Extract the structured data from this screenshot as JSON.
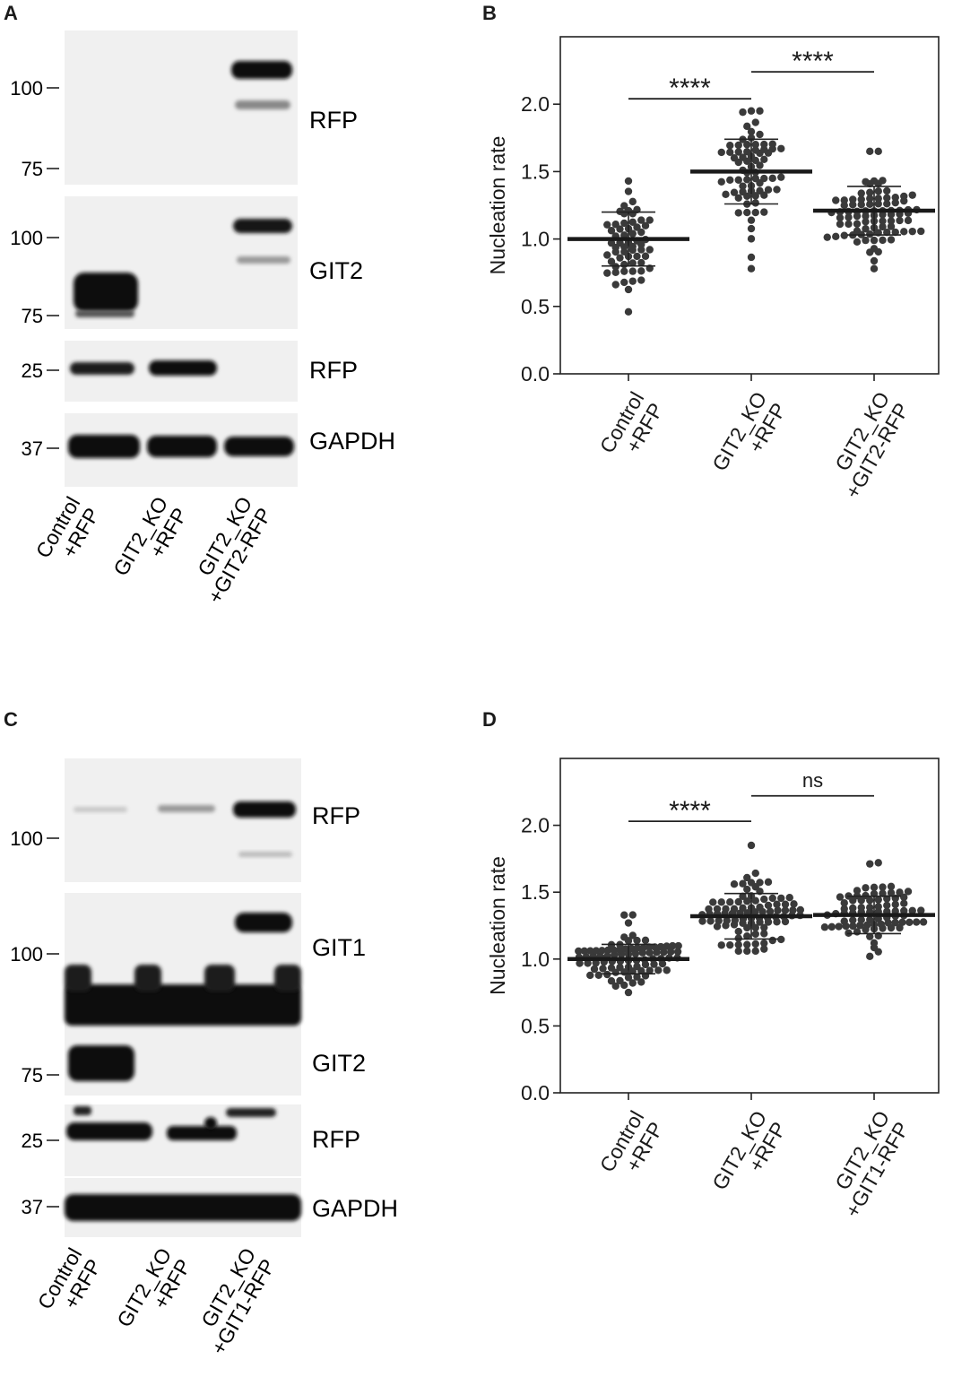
{
  "panels": {
    "A": {
      "letter": "A",
      "blots": [
        {
          "label": "RFP",
          "markers": [
            "100",
            "75"
          ]
        },
        {
          "label": "GIT2",
          "markers": [
            "100",
            "75"
          ]
        },
        {
          "label": "RFP",
          "markers": [
            "25"
          ]
        },
        {
          "label": "GAPDH",
          "markers": [
            "37"
          ]
        }
      ],
      "lanes": [
        {
          "line1": "Control",
          "line2": "+RFP"
        },
        {
          "line1": "GIT2_KO",
          "line2": "+RFP"
        },
        {
          "line1": "GIT2_KO",
          "line2": "+GIT2-RFP"
        }
      ]
    },
    "B": {
      "letter": "B"
    },
    "C": {
      "letter": "C",
      "blots": [
        {
          "label": "RFP",
          "markers": [
            "100"
          ]
        },
        {
          "label": "GIT1",
          "markers": [
            "100"
          ]
        },
        {
          "label": "GIT2",
          "markers": [
            "75"
          ]
        },
        {
          "label": "RFP",
          "markers": [
            "25"
          ]
        },
        {
          "label": "GAPDH",
          "markers": [
            "37"
          ]
        }
      ],
      "lanes": [
        {
          "line1": "Control",
          "line2": "+RFP"
        },
        {
          "line1": "GIT2_KO",
          "line2": "+RFP"
        },
        {
          "line1": "GIT2_KO",
          "line2": "+GIT1-RFP"
        }
      ]
    },
    "D": {
      "letter": "D"
    }
  },
  "chart_data": [
    {
      "panel": "B",
      "type": "scatter",
      "title": "",
      "xlabel": "",
      "ylabel": "Nucleation rate",
      "ylim": [
        0,
        2.5
      ],
      "yticks": [
        "0.0",
        "0.5",
        "1.0",
        "1.5",
        "2.0"
      ],
      "grid": false,
      "categories": [
        {
          "line1": "Control",
          "line2": "+RFP"
        },
        {
          "line1": "GIT2_KO",
          "line2": "+RFP"
        },
        {
          "line1": "GIT2_KO",
          "line2": "+GIT2-RFP"
        }
      ],
      "groups": [
        {
          "mean": 1.0,
          "sd": 0.2,
          "n": 60,
          "min": 0.46,
          "max": 1.43
        },
        {
          "mean": 1.5,
          "sd": 0.24,
          "n": 70,
          "min": 0.78,
          "max": 1.95
        },
        {
          "mean": 1.21,
          "sd": 0.18,
          "n": 85,
          "min": 0.78,
          "max": 1.65
        }
      ],
      "comparisons": [
        {
          "from": 0,
          "to": 1,
          "label": "****",
          "y": 2.04
        },
        {
          "from": 1,
          "to": 2,
          "label": "****",
          "y": 2.24
        }
      ]
    },
    {
      "panel": "D",
      "type": "scatter",
      "title": "",
      "xlabel": "",
      "ylabel": "Nucleation rate",
      "ylim": [
        0,
        2.5
      ],
      "yticks": [
        "0.0",
        "0.5",
        "1.0",
        "1.5",
        "2.0"
      ],
      "grid": false,
      "categories": [
        {
          "line1": "Control",
          "line2": "+RFP"
        },
        {
          "line1": "GIT2_KO",
          "line2": "+RFP"
        },
        {
          "line1": "GIT2_KO",
          "line2": "+GIT1-RFP"
        }
      ],
      "groups": [
        {
          "mean": 1.0,
          "sd": 0.11,
          "n": 85,
          "min": 0.75,
          "max": 1.33
        },
        {
          "mean": 1.32,
          "sd": 0.17,
          "n": 90,
          "min": 1.06,
          "max": 1.85
        },
        {
          "mean": 1.33,
          "sd": 0.14,
          "n": 80,
          "min": 1.02,
          "max": 1.72
        }
      ],
      "comparisons": [
        {
          "from": 0,
          "to": 1,
          "label": "****",
          "y": 2.03
        },
        {
          "from": 1,
          "to": 2,
          "label": "ns",
          "y": 2.22
        }
      ]
    }
  ]
}
